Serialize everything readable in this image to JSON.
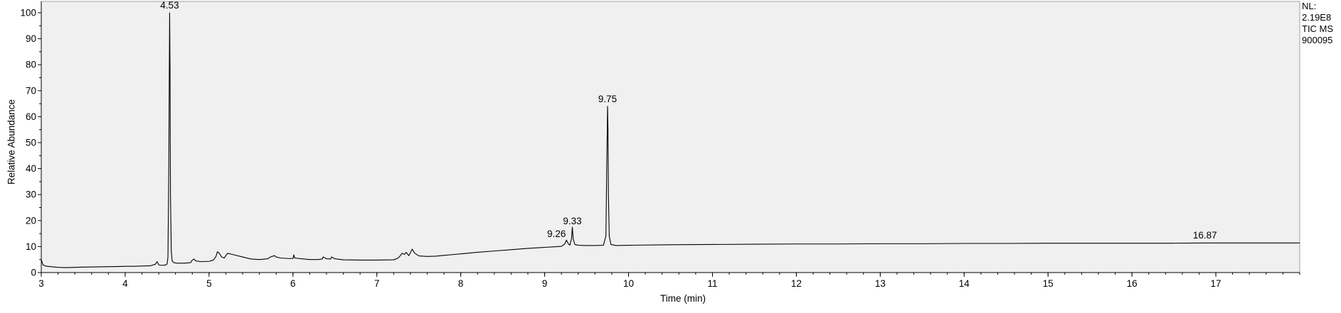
{
  "chart_data": {
    "type": "line",
    "xlabel": "Time (min)",
    "ylabel": "Relative Abundance",
    "xlim": [
      3,
      18
    ],
    "ylim": [
      0,
      100
    ],
    "x_ticks": [
      3,
      4,
      5,
      6,
      7,
      8,
      9,
      10,
      11,
      12,
      13,
      14,
      15,
      16,
      17
    ],
    "y_ticks": [
      0,
      10,
      20,
      30,
      40,
      50,
      60,
      70,
      80,
      90,
      100
    ],
    "grid": false,
    "plot_background": "#f0f0f0",
    "line_color": "#000000",
    "info_lines": [
      "NL:",
      "2.19E8",
      "TIC  MS",
      "900095"
    ],
    "peak_labels": [
      {
        "label": "4.53",
        "x": 4.53,
        "y": 100
      },
      {
        "label": "9.26",
        "x": 9.26,
        "y": 12
      },
      {
        "label": "9.33",
        "x": 9.33,
        "y": 17
      },
      {
        "label": "9.75",
        "x": 9.75,
        "y": 64
      },
      {
        "label": "16.87",
        "x": 16.87,
        "y": 11.5
      }
    ],
    "series": [
      {
        "x": [
          3.0,
          3.01,
          3.02,
          3.05,
          3.1,
          3.2,
          3.3,
          3.4,
          3.5,
          3.7,
          3.9,
          4.0,
          4.1,
          4.2,
          4.3,
          4.36,
          4.38,
          4.4,
          4.42,
          4.44,
          4.48,
          4.5,
          4.51,
          4.52,
          4.53,
          4.535,
          4.54,
          4.55,
          4.56,
          4.58,
          4.62,
          4.7,
          4.78,
          4.8,
          4.82,
          4.84,
          4.9,
          5.0,
          5.05,
          5.08,
          5.1,
          5.12,
          5.15,
          5.18,
          5.2,
          5.22,
          5.25,
          5.3,
          5.4,
          5.5,
          5.6,
          5.7,
          5.72,
          5.75,
          5.78,
          5.8,
          5.85,
          5.9,
          5.95,
          6.0,
          6.01,
          6.02,
          6.1,
          6.2,
          6.3,
          6.35,
          6.36,
          6.4,
          6.45,
          6.46,
          6.5,
          6.6,
          6.8,
          7.0,
          7.2,
          7.25,
          7.28,
          7.3,
          7.33,
          7.35,
          7.38,
          7.4,
          7.42,
          7.45,
          7.5,
          7.6,
          7.7,
          7.8,
          7.9,
          8.0,
          8.2,
          8.4,
          8.6,
          8.8,
          9.0,
          9.1,
          9.2,
          9.24,
          9.26,
          9.28,
          9.3,
          9.32,
          9.33,
          9.34,
          9.36,
          9.4,
          9.5,
          9.6,
          9.7,
          9.73,
          9.74,
          9.75,
          9.755,
          9.76,
          9.77,
          9.79,
          9.85,
          10.0,
          10.5,
          11.0,
          11.5,
          12.0,
          12.5,
          13.0,
          13.5,
          14.0,
          14.5,
          15.0,
          15.5,
          16.0,
          16.5,
          16.87,
          17.0,
          17.5,
          18.0
        ],
        "y": [
          5,
          4,
          3,
          2.5,
          2.3,
          2.0,
          1.9,
          2.0,
          2.1,
          2.2,
          2.3,
          2.4,
          2.4,
          2.5,
          2.6,
          3.2,
          4.2,
          3.0,
          2.8,
          2.8,
          2.9,
          3.3,
          6,
          40,
          100,
          78,
          30,
          8,
          4.5,
          3.8,
          3.6,
          3.6,
          3.8,
          4.8,
          5.2,
          4.5,
          4.2,
          4.3,
          4.8,
          6,
          8,
          7.5,
          6.0,
          5.6,
          6.5,
          7.4,
          7.2,
          6.8,
          6.0,
          5.2,
          5.0,
          5.3,
          5.8,
          6.2,
          6.5,
          6.0,
          5.6,
          5.5,
          5.4,
          5.4,
          6.8,
          5.6,
          5.3,
          5.0,
          5.0,
          5.2,
          6.0,
          5.3,
          5.2,
          6.0,
          5.3,
          4.9,
          4.8,
          4.8,
          4.9,
          5.5,
          6.5,
          7.4,
          7.0,
          7.8,
          6.5,
          7.6,
          9.0,
          7.5,
          6.4,
          6.2,
          6.3,
          6.6,
          6.9,
          7.2,
          7.8,
          8.3,
          8.8,
          9.3,
          9.7,
          9.9,
          10.1,
          11.0,
          12.5,
          11.2,
          10.5,
          13,
          17.5,
          13,
          10.8,
          10.5,
          10.4,
          10.4,
          10.5,
          14,
          40,
          64,
          55,
          30,
          14,
          10.8,
          10.4,
          10.5,
          10.7,
          10.8,
          10.9,
          11.0,
          11.0,
          11.1,
          11.1,
          11.2,
          11.2,
          11.3,
          11.3,
          11.3,
          11.3,
          11.4,
          11.4,
          11.4,
          11.4
        ]
      }
    ]
  }
}
